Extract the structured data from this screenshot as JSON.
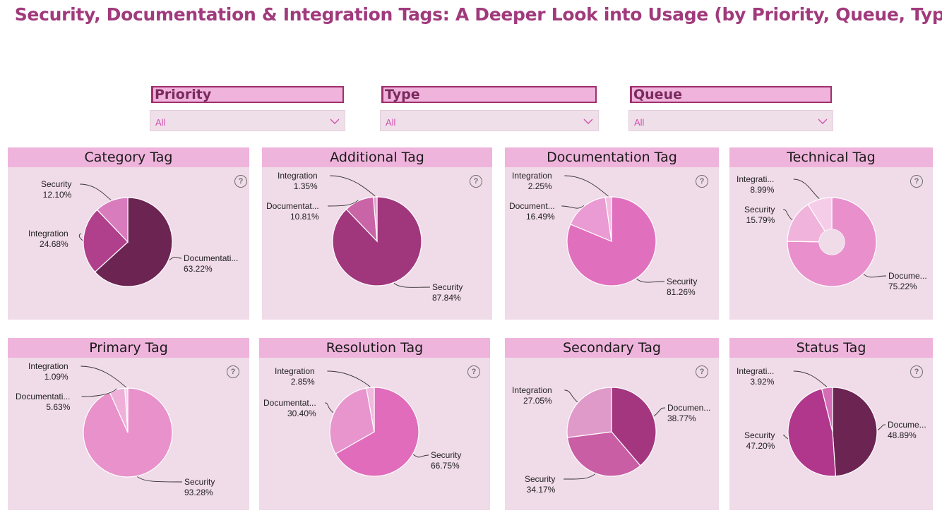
{
  "title": "Security, Documentation & Integration Tags: A Deeper Look into Usage (by Priority, Queue, Type)",
  "slicers": [
    {
      "label": "Priority",
      "value": "All"
    },
    {
      "label": "Type",
      "value": "All"
    },
    {
      "label": "Queue",
      "value": "All"
    }
  ],
  "help_glyph": "?",
  "chart_data": [
    {
      "type": "pie",
      "title": "Category Tag",
      "slices": [
        {
          "label": "Documentati...",
          "value": 63.22,
          "pct": "63.22%",
          "color": "#6c2452"
        },
        {
          "label": "Integration",
          "value": 24.68,
          "pct": "24.68%",
          "color": "#b0408c"
        },
        {
          "label": "Security",
          "value": 12.1,
          "pct": "12.10%",
          "color": "#d97cbd"
        }
      ]
    },
    {
      "type": "pie",
      "title": "Additional Tag",
      "slices": [
        {
          "label": "Security",
          "value": 87.84,
          "pct": "87.84%",
          "color": "#a0377d"
        },
        {
          "label": "Documentat...",
          "value": 10.81,
          "pct": "10.81%",
          "color": "#c965a6"
        },
        {
          "label": "Integration",
          "value": 1.35,
          "pct": "1.35%",
          "color": "#e3a4d0"
        }
      ]
    },
    {
      "type": "pie",
      "title": "Documentation Tag",
      "slices": [
        {
          "label": "Security",
          "value": 81.26,
          "pct": "81.26%",
          "color": "#e070be"
        },
        {
          "label": "Document...",
          "value": 16.49,
          "pct": "16.49%",
          "color": "#eb9bd3"
        },
        {
          "label": "Integration",
          "value": 2.25,
          "pct": "2.25%",
          "color": "#f2bee0"
        }
      ]
    },
    {
      "type": "pie",
      "donut": true,
      "title": "Technical Tag",
      "slices": [
        {
          "label": "Docume...",
          "value": 75.22,
          "pct": "75.22%",
          "color": "#e98fcc"
        },
        {
          "label": "Security",
          "value": 15.79,
          "pct": "15.79%",
          "color": "#f0b4dc"
        },
        {
          "label": "Integrati...",
          "value": 8.99,
          "pct": "8.99%",
          "color": "#f6cde8"
        }
      ]
    },
    {
      "type": "pie",
      "title": "Primary Tag",
      "slices": [
        {
          "label": "Security",
          "value": 93.28,
          "pct": "93.28%",
          "color": "#e891ca"
        },
        {
          "label": "Documentati...",
          "value": 5.63,
          "pct": "5.63%",
          "color": "#eeb0d9"
        },
        {
          "label": "Integration",
          "value": 1.09,
          "pct": "1.09%",
          "color": "#f6d4eb"
        }
      ]
    },
    {
      "type": "pie",
      "title": "Resolution Tag",
      "slices": [
        {
          "label": "Security",
          "value": 66.75,
          "pct": "66.75%",
          "color": "#e06cbb"
        },
        {
          "label": "Documentat...",
          "value": 30.4,
          "pct": "30.40%",
          "color": "#e894cd"
        },
        {
          "label": "Integration",
          "value": 2.85,
          "pct": "2.85%",
          "color": "#f0b9de"
        }
      ]
    },
    {
      "type": "pie",
      "title": "Secondary Tag",
      "slices": [
        {
          "label": "Documen...",
          "value": 38.77,
          "pct": "38.77%",
          "color": "#a3367f"
        },
        {
          "label": "Security",
          "value": 34.17,
          "pct": "34.17%",
          "color": "#c95ea5"
        },
        {
          "label": "Integration",
          "value": 27.05,
          "pct": "27.05%",
          "color": "#df9ac9"
        }
      ]
    },
    {
      "type": "pie",
      "title": "Status Tag",
      "slices": [
        {
          "label": "Docume...",
          "value": 48.89,
          "pct": "48.89%",
          "color": "#6c2452"
        },
        {
          "label": "Security",
          "value": 47.2,
          "pct": "47.20%",
          "color": "#b0378c"
        },
        {
          "label": "Integrati...",
          "value": 3.92,
          "pct": "3.92%",
          "color": "#d46cb6"
        }
      ]
    }
  ]
}
